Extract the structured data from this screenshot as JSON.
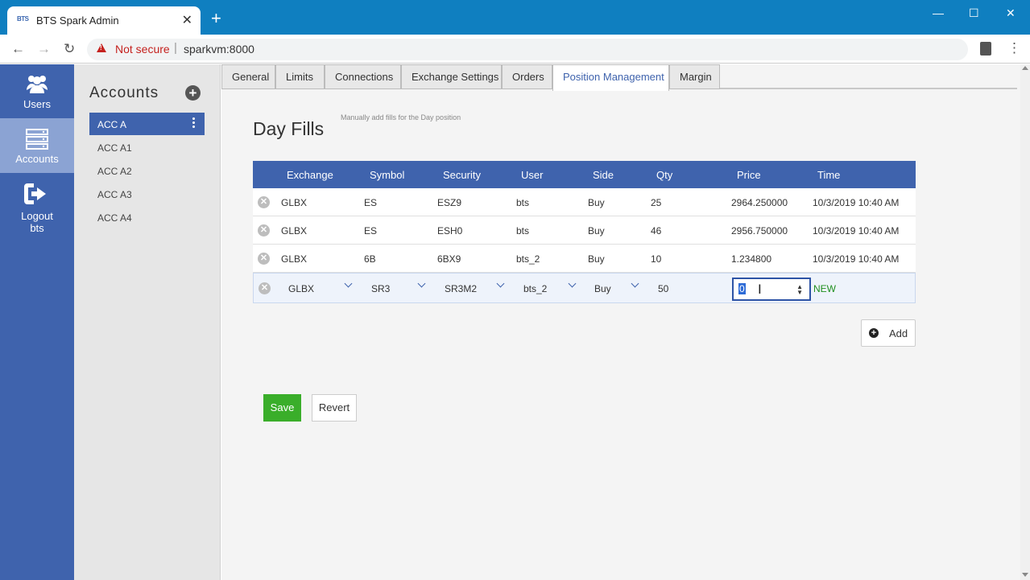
{
  "browser": {
    "tab_title": "BTS Spark Admin",
    "favicon_text": "BTS",
    "tab_close": "✕",
    "new_tab": "+",
    "win_minimize": "—",
    "win_maximize": "☐",
    "win_close": "✕",
    "back": "←",
    "forward": "→",
    "reload": "↻",
    "not_secure": "Not secure",
    "url": "sparkvm:8000",
    "menu": "⋮"
  },
  "nav": {
    "users": "Users",
    "accounts": "Accounts",
    "logout": "Logout",
    "logout_user": "bts"
  },
  "accounts": {
    "title": "Accounts",
    "add_icon": "+",
    "items": [
      "ACC A",
      "ACC A1",
      "ACC A2",
      "ACC A3",
      "ACC A4"
    ],
    "selected": "ACC A"
  },
  "tabs": [
    "General",
    "Limits",
    "Connections",
    "Exchange Settings",
    "Orders",
    "Position Management",
    "Margin"
  ],
  "active_tab": "Position Management",
  "page": {
    "title": "Day Fills",
    "subtitle": "Manually add fills for the Day position"
  },
  "grid": {
    "columns": [
      "Exchange",
      "Symbol",
      "Security",
      "User",
      "Side",
      "Qty",
      "Price",
      "Time"
    ],
    "rows": [
      {
        "exchange": "GLBX",
        "symbol": "ES",
        "security": "ESZ9",
        "user": "bts",
        "side": "Buy",
        "qty": "25",
        "price": "2964.250000",
        "time": "10/3/2019 10:40 AM"
      },
      {
        "exchange": "GLBX",
        "symbol": "ES",
        "security": "ESH0",
        "user": "bts",
        "side": "Buy",
        "qty": "46",
        "price": "2956.750000",
        "time": "10/3/2019 10:40 AM"
      },
      {
        "exchange": "GLBX",
        "symbol": "6B",
        "security": "6BX9",
        "user": "bts_2",
        "side": "Buy",
        "qty": "10",
        "price": "1.234800",
        "time": "10/3/2019 10:40 AM"
      }
    ],
    "edit_row": {
      "exchange": "GLBX",
      "symbol": "SR3",
      "security": "SR3M2",
      "user": "bts_2",
      "side": "Buy",
      "qty": "50",
      "price": "0",
      "status": "NEW"
    },
    "remove_icon": "✕"
  },
  "buttons": {
    "add": "Add",
    "save": "Save",
    "revert": "Revert"
  },
  "colors": {
    "brand": "#3f63ad",
    "save": "#3aae2a",
    "new_status": "#1f8f1f"
  }
}
